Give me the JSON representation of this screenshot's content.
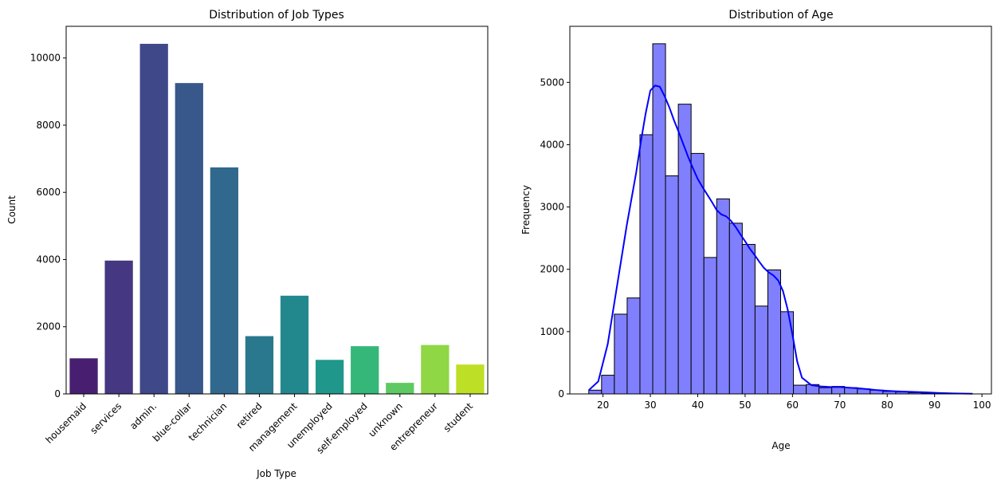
{
  "chart_data": [
    {
      "type": "bar",
      "title": "Distribution of Job Types",
      "xlabel": "Job Type",
      "ylabel": "Count",
      "categories": [
        "housemaid",
        "services",
        "admin.",
        "blue-collar",
        "technician",
        "retired",
        "management",
        "unemployed",
        "self-employed",
        "unknown",
        "entrepreneur",
        "student"
      ],
      "values": [
        1060,
        3969,
        10422,
        9254,
        6743,
        1720,
        2924,
        1014,
        1421,
        330,
        1456,
        875
      ],
      "colors": [
        "#481f70",
        "#453781",
        "#3f4889",
        "#38588c",
        "#31688e",
        "#2a788e",
        "#23888e",
        "#1f988b",
        "#35b779",
        "#5ec962",
        "#8fd744",
        "#bddf26"
      ],
      "ylim": [
        0,
        10943
      ],
      "yticks": [
        0,
        2000,
        4000,
        6000,
        8000,
        10000
      ],
      "grid": false
    },
    {
      "type": "histogram",
      "title": "Distribution of Age",
      "xlabel": "Age",
      "ylabel": "Frequency",
      "bin_start": 17,
      "bin_width": 2.7,
      "values": [
        60,
        300,
        1280,
        1540,
        4160,
        5620,
        3500,
        4650,
        3860,
        2190,
        3130,
        2740,
        2400,
        1410,
        1990,
        1320,
        140,
        150,
        100,
        120,
        100,
        80,
        60,
        40,
        30,
        20,
        10,
        8,
        5,
        3
      ],
      "bar_color": "#8080ff",
      "edge_color": "#000000",
      "kde": {
        "color": "#0000ff",
        "x": [
          17,
          19,
          21,
          23,
          25,
          27,
          28,
          29,
          30,
          31,
          32,
          33,
          34,
          35,
          36,
          37,
          38,
          39,
          40,
          41,
          42,
          43,
          44,
          45,
          46,
          47,
          48,
          49,
          50,
          51,
          52,
          53,
          54,
          55,
          56,
          57,
          58,
          59,
          60,
          61,
          62,
          64,
          66,
          68,
          70,
          72,
          74,
          76,
          78,
          80,
          82,
          85,
          88,
          91,
          94,
          98
        ],
        "y": [
          60,
          200,
          800,
          1750,
          2700,
          3550,
          4050,
          4500,
          4870,
          4950,
          4930,
          4780,
          4600,
          4390,
          4200,
          4000,
          3800,
          3620,
          3450,
          3320,
          3200,
          3080,
          2950,
          2880,
          2850,
          2780,
          2680,
          2560,
          2450,
          2330,
          2230,
          2120,
          2020,
          1950,
          1900,
          1820,
          1650,
          1350,
          950,
          520,
          260,
          140,
          120,
          110,
          110,
          100,
          90,
          75,
          60,
          50,
          42,
          34,
          25,
          15,
          8,
          3
        ]
      },
      "xlim": [
        13,
        102
      ],
      "ylim": [
        0,
        5900
      ],
      "xticks": [
        20,
        30,
        40,
        50,
        60,
        70,
        80,
        90,
        100
      ],
      "yticks": [
        0,
        1000,
        2000,
        3000,
        4000,
        5000
      ],
      "grid": false
    }
  ]
}
